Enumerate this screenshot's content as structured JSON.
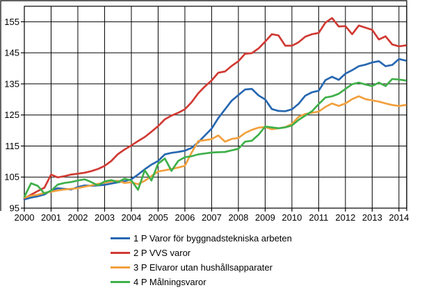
{
  "figure": {
    "background_color": "#ffffff",
    "frame_color": "#000000",
    "text_color": "#000000"
  },
  "chart_data": {
    "type": "line",
    "title": "",
    "xlabel": "",
    "ylabel": "",
    "grid": true,
    "legend_position": "bottom-left-indented",
    "xlim": [
      2000,
      2014.29
    ],
    "ylim": [
      95,
      160
    ],
    "x_tick_labels": [
      "2000",
      "2001",
      "2002",
      "2003",
      "2004",
      "2005",
      "2006",
      "2007",
      "2008",
      "2009",
      "2010",
      "2011",
      "2012",
      "2013",
      "2014"
    ],
    "x_ticks": [
      2000,
      2001,
      2002,
      2003,
      2004,
      2005,
      2006,
      2007,
      2008,
      2009,
      2010,
      2011,
      2012,
      2013,
      2014
    ],
    "y_tick_labels": [
      "95",
      "105",
      "115",
      "125",
      "135",
      "145",
      "155"
    ],
    "y_ticks": [
      95,
      105,
      115,
      125,
      135,
      145,
      155
    ],
    "x": [
      2000.0,
      2000.25,
      2000.5,
      2000.75,
      2001.0,
      2001.25,
      2001.5,
      2001.75,
      2002.0,
      2002.25,
      2002.5,
      2002.75,
      2003.0,
      2003.25,
      2003.5,
      2003.75,
      2004.0,
      2004.25,
      2004.5,
      2004.75,
      2005.0,
      2005.25,
      2005.5,
      2005.75,
      2006.0,
      2006.25,
      2006.5,
      2006.75,
      2007.0,
      2007.25,
      2007.5,
      2007.75,
      2008.0,
      2008.25,
      2008.5,
      2008.75,
      2009.0,
      2009.25,
      2009.5,
      2009.75,
      2010.0,
      2010.25,
      2010.5,
      2010.75,
      2011.0,
      2011.25,
      2011.5,
      2011.75,
      2012.0,
      2012.25,
      2012.5,
      2012.75,
      2013.0,
      2013.25,
      2013.5,
      2013.75,
      2014.0,
      2014.25
    ],
    "series": [
      {
        "name": "1 P Varor för byggnadstekniska arbeten",
        "color": "#2767b1",
        "values": [
          97.8,
          98.4,
          98.8,
          99.4,
          100.7,
          101.4,
          101.2,
          101.0,
          101.8,
          102.3,
          102.2,
          102.3,
          102.5,
          102.9,
          103.3,
          103.7,
          104.3,
          105.8,
          107.5,
          109.0,
          110.2,
          112.3,
          112.8,
          113.1,
          113.5,
          114.4,
          116.2,
          118.4,
          120.6,
          124.0,
          126.8,
          129.6,
          131.4,
          133.2,
          133.4,
          131.3,
          130.0,
          126.9,
          126.3,
          126.2,
          126.8,
          128.6,
          131.2,
          132.3,
          132.8,
          136.2,
          137.3,
          136.3,
          138.3,
          139.4,
          140.7,
          141.2,
          141.9,
          142.3,
          140.7,
          141.1,
          143.0,
          142.5
        ]
      },
      {
        "name": "2 P VVS varor",
        "color": "#d03a33",
        "values": [
          98.2,
          99.3,
          100.5,
          101.6,
          105.8,
          104.9,
          105.3,
          105.8,
          106.1,
          106.4,
          106.9,
          107.6,
          108.6,
          110.2,
          112.4,
          113.9,
          115.2,
          116.6,
          117.9,
          119.6,
          121.4,
          123.6,
          124.8,
          125.7,
          126.8,
          129.1,
          132.0,
          134.2,
          136.1,
          138.6,
          139.0,
          140.8,
          142.3,
          144.7,
          144.9,
          146.4,
          148.6,
          151.0,
          150.6,
          147.3,
          147.3,
          148.4,
          150.2,
          151.0,
          151.4,
          154.7,
          156.2,
          153.5,
          153.6,
          151.0,
          153.8,
          153.1,
          152.4,
          149.3,
          150.3,
          147.7,
          147.1,
          147.4
        ]
      },
      {
        "name": "3 P Elvaror utan hushållsapparater",
        "color": "#f2a03d",
        "values": [
          98.4,
          99.0,
          99.3,
          99.9,
          100.3,
          100.7,
          101.0,
          101.2,
          101.4,
          101.9,
          102.3,
          102.8,
          103.2,
          103.6,
          103.8,
          103.1,
          103.3,
          102.7,
          103.8,
          105.3,
          106.8,
          107.2,
          107.6,
          108.1,
          108.6,
          112.9,
          116.6,
          116.9,
          117.2,
          118.4,
          116.4,
          117.3,
          117.6,
          119.2,
          120.2,
          120.9,
          121.1,
          120.4,
          120.7,
          121.1,
          122.1,
          124.4,
          125.3,
          125.7,
          126.1,
          127.6,
          128.7,
          127.9,
          128.7,
          130.1,
          131.0,
          130.1,
          129.7,
          129.3,
          128.7,
          128.2,
          127.9,
          128.2
        ]
      },
      {
        "name": "4 P Målningsvaror",
        "color": "#3fb04a",
        "values": [
          98.6,
          103.0,
          102.2,
          99.7,
          100.6,
          102.6,
          103.1,
          103.4,
          103.9,
          104.3,
          103.4,
          102.3,
          103.6,
          104.0,
          103.4,
          104.5,
          103.9,
          100.9,
          107.2,
          103.9,
          109.3,
          111.0,
          107.0,
          110.2,
          111.4,
          111.7,
          112.3,
          112.6,
          112.9,
          113.0,
          113.1,
          113.6,
          114.1,
          116.4,
          116.7,
          118.6,
          121.3,
          121.0,
          120.7,
          121.0,
          121.6,
          123.4,
          124.8,
          126.2,
          128.5,
          130.6,
          131.0,
          131.8,
          133.4,
          134.9,
          135.4,
          134.8,
          134.3,
          135.4,
          134.3,
          136.6,
          136.4,
          136.1
        ]
      }
    ]
  }
}
